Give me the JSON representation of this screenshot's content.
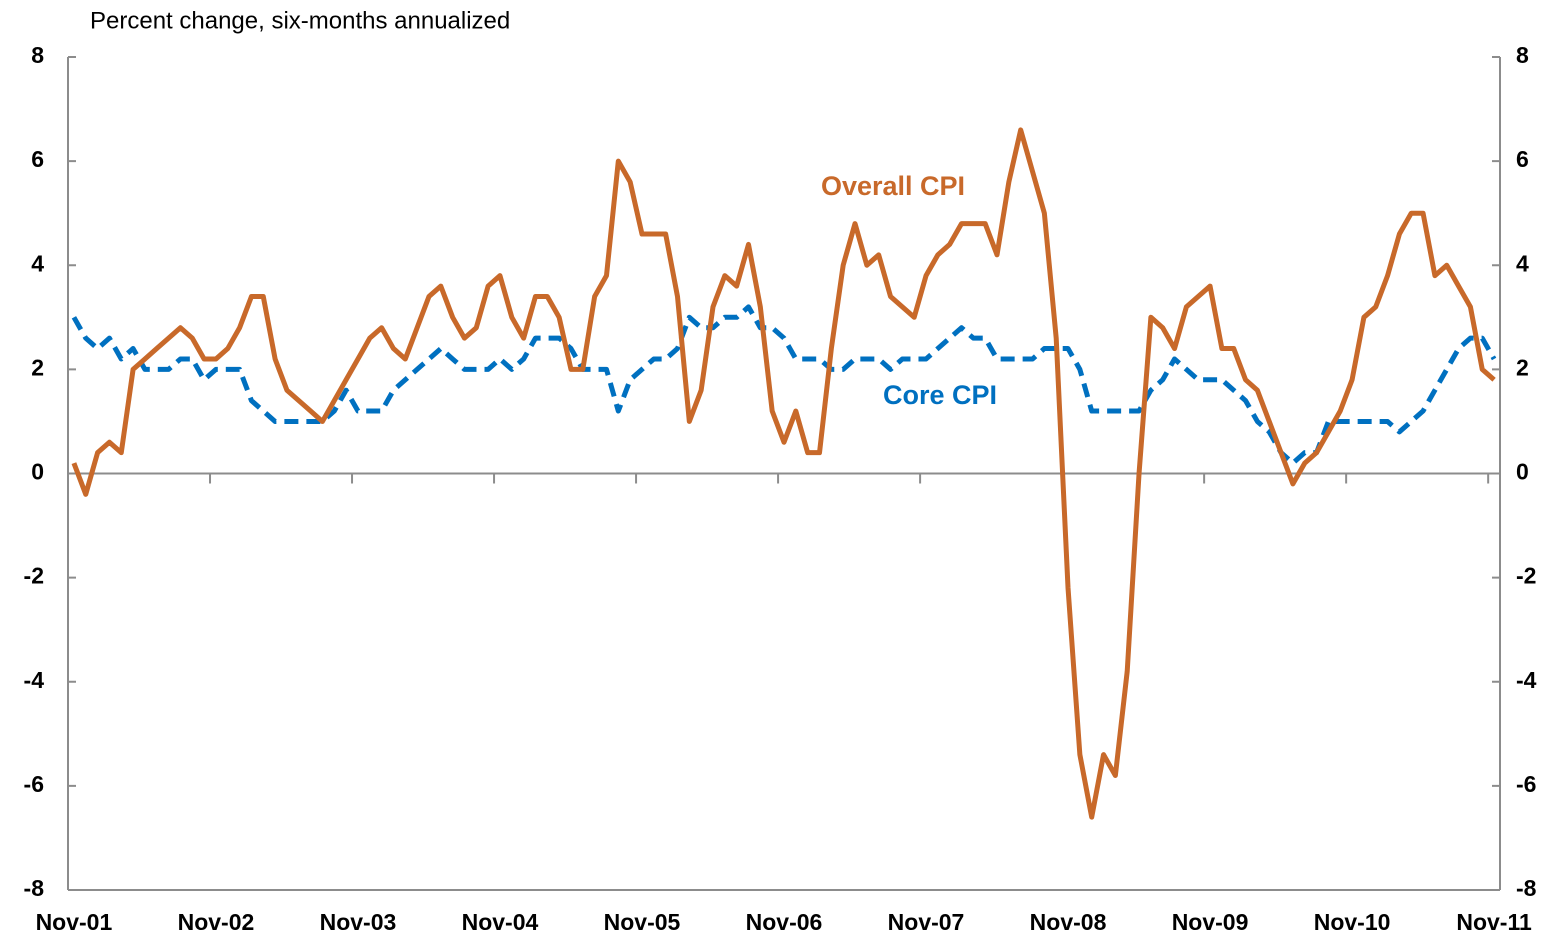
{
  "chart_data": {
    "type": "line",
    "y_axis_label": "Percent change, six-months annualized",
    "categories": [
      "Nov-01",
      null,
      null,
      null,
      null,
      null,
      null,
      null,
      null,
      null,
      null,
      null,
      "Nov-02",
      null,
      null,
      null,
      null,
      null,
      null,
      null,
      null,
      null,
      null,
      null,
      "Nov-03",
      null,
      null,
      null,
      null,
      null,
      null,
      null,
      null,
      null,
      null,
      null,
      "Nov-04",
      null,
      null,
      null,
      null,
      null,
      null,
      null,
      null,
      null,
      null,
      null,
      "Nov-05",
      null,
      null,
      null,
      null,
      null,
      null,
      null,
      null,
      null,
      null,
      null,
      "Nov-06",
      null,
      null,
      null,
      null,
      null,
      null,
      null,
      null,
      null,
      null,
      null,
      "Nov-07",
      null,
      null,
      null,
      null,
      null,
      null,
      null,
      null,
      null,
      null,
      null,
      "Nov-08",
      null,
      null,
      null,
      null,
      null,
      null,
      null,
      null,
      null,
      null,
      null,
      "Nov-09",
      null,
      null,
      null,
      null,
      null,
      null,
      null,
      null,
      null,
      null,
      null,
      "Nov-10",
      null,
      null,
      null,
      null,
      null,
      null,
      null,
      null,
      null,
      null,
      null,
      "Nov-11"
    ],
    "series": [
      {
        "name": "Overall CPI",
        "color": "#c8692a",
        "dash": false,
        "values": [
          0.2,
          -0.4,
          0.4,
          0.6,
          0.4,
          2.0,
          2.2,
          2.4,
          2.6,
          2.8,
          2.6,
          2.2,
          2.2,
          2.4,
          2.8,
          3.4,
          3.4,
          2.2,
          1.6,
          1.4,
          1.2,
          1.0,
          1.4,
          1.8,
          2.2,
          2.6,
          2.8,
          2.4,
          2.2,
          2.8,
          3.4,
          3.6,
          3.0,
          2.6,
          2.8,
          3.6,
          3.8,
          3.0,
          2.6,
          3.4,
          3.4,
          3.0,
          2.0,
          2.0,
          3.4,
          3.8,
          6.0,
          5.6,
          4.6,
          4.6,
          4.6,
          3.4,
          1.0,
          1.6,
          3.2,
          3.8,
          3.6,
          4.4,
          3.2,
          1.2,
          0.6,
          1.2,
          0.4,
          0.4,
          2.4,
          4.0,
          4.8,
          4.0,
          4.2,
          3.4,
          3.2,
          3.0,
          3.8,
          4.2,
          4.4,
          4.8,
          4.8,
          4.8,
          4.2,
          5.6,
          6.6,
          5.8,
          5.0,
          2.6,
          -2.2,
          -5.4,
          -6.6,
          -5.4,
          -5.8,
          -3.8,
          0.0,
          3.0,
          2.8,
          2.4,
          3.2,
          3.4,
          3.6,
          2.4,
          2.4,
          1.8,
          1.6,
          1.0,
          0.4,
          -0.2,
          0.2,
          0.4,
          0.8,
          1.2,
          1.8,
          3.0,
          3.2,
          3.8,
          4.6,
          5.0,
          5.0,
          3.8,
          4.0,
          3.6,
          3.2,
          2.0,
          1.8
        ]
      },
      {
        "name": "Core CPI",
        "color": "#0070c0",
        "dash": true,
        "values": [
          3.0,
          2.6,
          2.4,
          2.6,
          2.2,
          2.4,
          2.0,
          2.0,
          2.0,
          2.2,
          2.2,
          1.8,
          2.0,
          2.0,
          2.0,
          1.4,
          1.2,
          1.0,
          1.0,
          1.0,
          1.0,
          1.0,
          1.2,
          1.6,
          1.2,
          1.2,
          1.2,
          1.6,
          1.8,
          2.0,
          2.2,
          2.4,
          2.2,
          2.0,
          2.0,
          2.0,
          2.2,
          2.0,
          2.2,
          2.6,
          2.6,
          2.6,
          2.4,
          2.0,
          2.0,
          2.0,
          1.2,
          1.8,
          2.0,
          2.2,
          2.2,
          2.4,
          3.0,
          2.8,
          2.8,
          3.0,
          3.0,
          3.2,
          2.8,
          2.8,
          2.6,
          2.2,
          2.2,
          2.2,
          2.0,
          2.0,
          2.2,
          2.2,
          2.2,
          2.0,
          2.2,
          2.2,
          2.2,
          2.4,
          2.6,
          2.8,
          2.6,
          2.6,
          2.2,
          2.2,
          2.2,
          2.2,
          2.4,
          2.4,
          2.4,
          2.0,
          1.2,
          1.2,
          1.2,
          1.2,
          1.2,
          1.6,
          1.8,
          2.2,
          2.0,
          1.8,
          1.8,
          1.8,
          1.6,
          1.4,
          1.0,
          0.8,
          0.4,
          0.2,
          0.4,
          0.4,
          1.0,
          1.0,
          1.0,
          1.0,
          1.0,
          1.0,
          0.8,
          1.0,
          1.2,
          1.6,
          2.0,
          2.4,
          2.6,
          2.6,
          2.2
        ]
      }
    ],
    "ylim": [
      -8,
      8
    ],
    "yticks": [
      -8,
      -6,
      -4,
      -2,
      0,
      2,
      4,
      6,
      8
    ],
    "y2lim": [
      -8,
      8
    ],
    "y2ticks": [
      -8,
      -6,
      -4,
      -2,
      0,
      2,
      4,
      6,
      8
    ],
    "annotations": [
      {
        "text": "Overall CPI",
        "series": 0
      },
      {
        "text": "Core CPI",
        "series": 1
      }
    ]
  }
}
